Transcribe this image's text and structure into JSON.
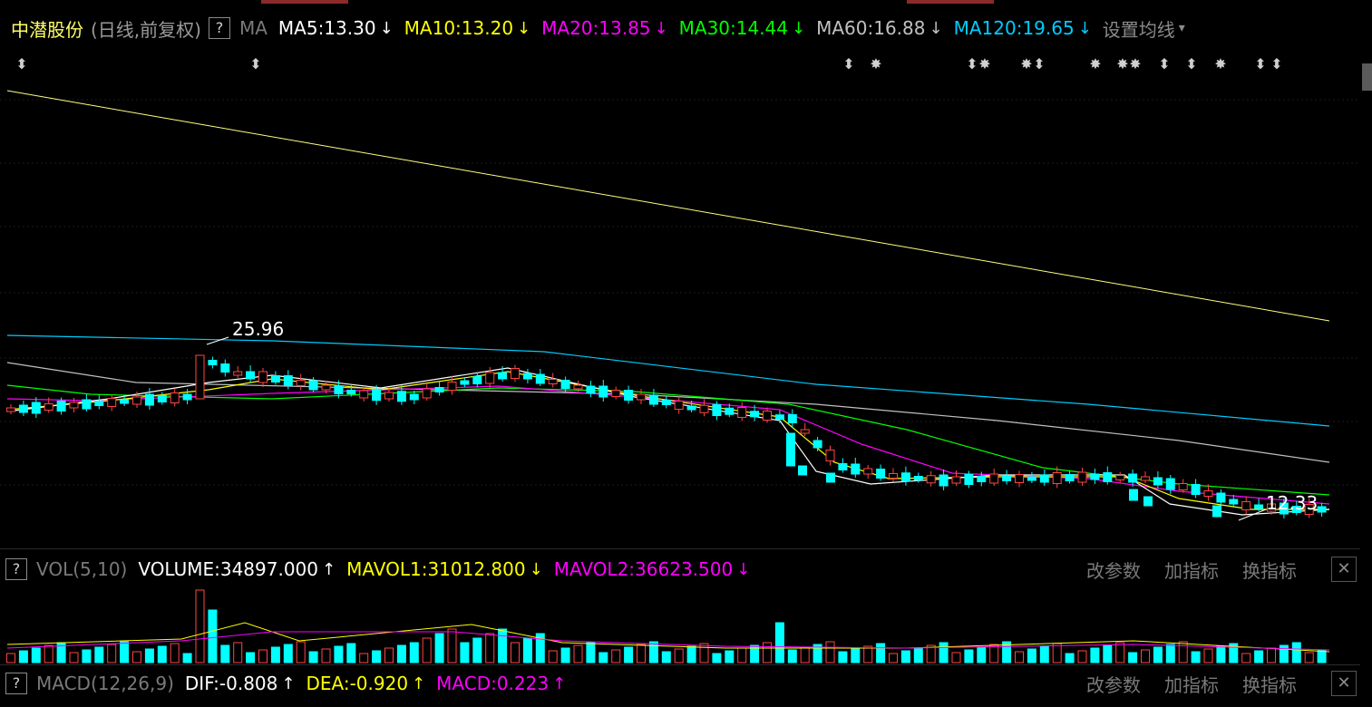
{
  "main_header": {
    "stock_name": "中潜股份",
    "mode": "(日线,前复权)",
    "help": "?",
    "indicator": "MA",
    "ma_items": [
      {
        "label": "MA5:13.30",
        "arrow": "↓",
        "color": "#ffffff"
      },
      {
        "label": "MA10:13.20",
        "arrow": "↓",
        "color": "#ffff00"
      },
      {
        "label": "MA20:13.85",
        "arrow": "↓",
        "color": "#ff00ff"
      },
      {
        "label": "MA30:14.44",
        "arrow": "↓",
        "color": "#00ff00"
      },
      {
        "label": "MA60:16.88",
        "arrow": "↓",
        "color": "#c0c0c0"
      },
      {
        "label": "MA120:19.65",
        "arrow": "↓",
        "color": "#00ccff"
      }
    ],
    "settings_label": "设置均线",
    "settings_caret": "▾"
  },
  "annotations": {
    "high_label": "25.96",
    "low_label": "12.33"
  },
  "event_markers": [
    "⬍",
    "⬍",
    "⬍",
    "✸",
    "⬍",
    "✸",
    "✸",
    "⬍",
    "✸",
    "✸",
    "✸",
    "⬍",
    "⬍",
    "✸",
    "⬍",
    "⬍"
  ],
  "vol_header": {
    "help": "?",
    "name": "VOL(5,10)",
    "items": [
      {
        "label": "VOLUME:34897.000",
        "arrow": "↑",
        "color": "#ffffff"
      },
      {
        "label": "MAVOL1:31012.800",
        "arrow": "↓",
        "color": "#ffff00"
      },
      {
        "label": "MAVOL2:36623.500",
        "arrow": "↓",
        "color": "#ff00ff"
      }
    ],
    "btn_params": "改参数",
    "btn_add": "加指标",
    "btn_switch": "换指标",
    "close": "✕"
  },
  "macd_header": {
    "help": "?",
    "name": "MACD(12,26,9)",
    "items": [
      {
        "label": "DIF:-0.808",
        "arrow": "↑",
        "color": "#ffffff"
      },
      {
        "label": "DEA:-0.920",
        "arrow": "↑",
        "color": "#ffff00"
      },
      {
        "label": "MACD:0.223",
        "arrow": "↑",
        "color": "#ff00ff"
      }
    ],
    "btn_params": "改参数",
    "btn_add": "加指标",
    "btn_switch": "换指标",
    "close": "✕"
  },
  "colors": {
    "up": "#ff4444",
    "down": "#00ffff",
    "ma5": "#ffffff",
    "ma10": "#ffff00",
    "ma20": "#ff00ff",
    "ma30": "#00ff00",
    "ma60": "#c0c0c0",
    "ma120": "#00ccff",
    "ma250": "#ffff80"
  }
}
